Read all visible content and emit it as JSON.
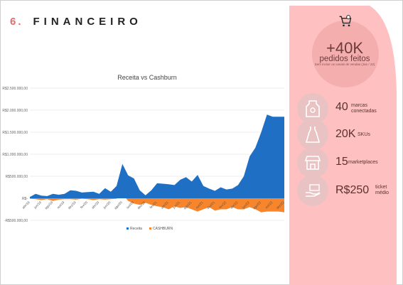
{
  "slide": {
    "number": "6.",
    "title": "FINANCEIRO"
  },
  "stats": {
    "icon": "shopping-cart-icon",
    "headline_value": "+40K",
    "headline_label": "pedidos feitos",
    "headline_note": "Sem incluir os canais de vendas (Jan / 22)",
    "items": [
      {
        "value": "40",
        "label": "marcas conectadas",
        "icon": "shirt-tag-icon"
      },
      {
        "value": "20K",
        "label": "SKUs",
        "icon": "dress-icon"
      },
      {
        "value": "15",
        "label": "marketplaces",
        "icon": "storefront-icon"
      },
      {
        "value": "R$250",
        "label": "ticket médio",
        "icon": "money-hand-icon"
      }
    ]
  },
  "colors": {
    "panel": "#fec0c0",
    "accent": "#e46c6c",
    "receita": "#1f6fc4",
    "cashburn": "#f7852b"
  },
  "chart_data": {
    "type": "area",
    "title": "Receita vs Cashburn",
    "xlabel": "",
    "ylabel": "",
    "ylim": [
      -500000,
      2500000
    ],
    "yticks": [
      "R$2.500.000,00",
      "R$2.000.000,00",
      "R$1.500.000,00",
      "R$1.000.000,00",
      "R$500.000,00",
      "R$-",
      "-R$500.000,00"
    ],
    "x_tick_labels": [
      "abr/19",
      "jun/19",
      "ago/19",
      "out/19",
      "dez/19",
      "fev/20",
      "abr/20",
      "jun/20",
      "ago/20",
      "out/20",
      "dez/20",
      "fev/21",
      "abr/21",
      "jun/21",
      "ago/21",
      "out/21",
      "dez/21",
      "fev/22",
      "abr/22",
      "jun/22",
      "ago/22",
      "out/22",
      "dez/22"
    ],
    "x": [
      "abr/19",
      "mai/19",
      "jun/19",
      "jul/19",
      "ago/19",
      "set/19",
      "out/19",
      "nov/19",
      "dez/19",
      "jan/20",
      "fev/20",
      "mar/20",
      "abr/20",
      "mai/20",
      "jun/20",
      "jul/20",
      "ago/20",
      "set/20",
      "out/20",
      "nov/20",
      "dez/20",
      "jan/21",
      "fev/21",
      "mar/21",
      "abr/21",
      "mai/21",
      "jun/21",
      "jul/21",
      "ago/21",
      "set/21",
      "out/21",
      "nov/21",
      "dez/21",
      "jan/22",
      "fev/22",
      "mar/22",
      "abr/22",
      "mai/22",
      "jun/22",
      "jul/22",
      "ago/22",
      "set/22",
      "out/22",
      "nov/22",
      "dez/22"
    ],
    "series": [
      {
        "name": "Receita",
        "values": [
          30000,
          100000,
          60000,
          50000,
          100000,
          80000,
          100000,
          180000,
          170000,
          130000,
          140000,
          150000,
          100000,
          230000,
          150000,
          280000,
          780000,
          520000,
          450000,
          180000,
          70000,
          180000,
          340000,
          330000,
          320000,
          300000,
          420000,
          480000,
          380000,
          530000,
          280000,
          220000,
          170000,
          250000,
          200000,
          220000,
          300000,
          500000,
          950000,
          1150000,
          1500000,
          1900000,
          1850000,
          1850000,
          1850000
        ]
      },
      {
        "name": "CASHBURN",
        "values": [
          -10000,
          -20000,
          -40000,
          -20000,
          -60000,
          -30000,
          -20000,
          -20000,
          -30000,
          -10000,
          -20000,
          -40000,
          -20000,
          -30000,
          -20000,
          -10000,
          100000,
          -60000,
          -120000,
          -150000,
          -100000,
          -150000,
          -180000,
          -200000,
          -250000,
          -180000,
          -220000,
          -200000,
          -250000,
          -300000,
          -250000,
          -200000,
          -280000,
          -250000,
          -250000,
          -200000,
          -250000,
          -250000,
          -200000,
          -250000,
          -320000,
          -300000,
          -300000,
          -300000,
          -320000
        ]
      }
    ],
    "legend": "bottom",
    "grid": true
  }
}
